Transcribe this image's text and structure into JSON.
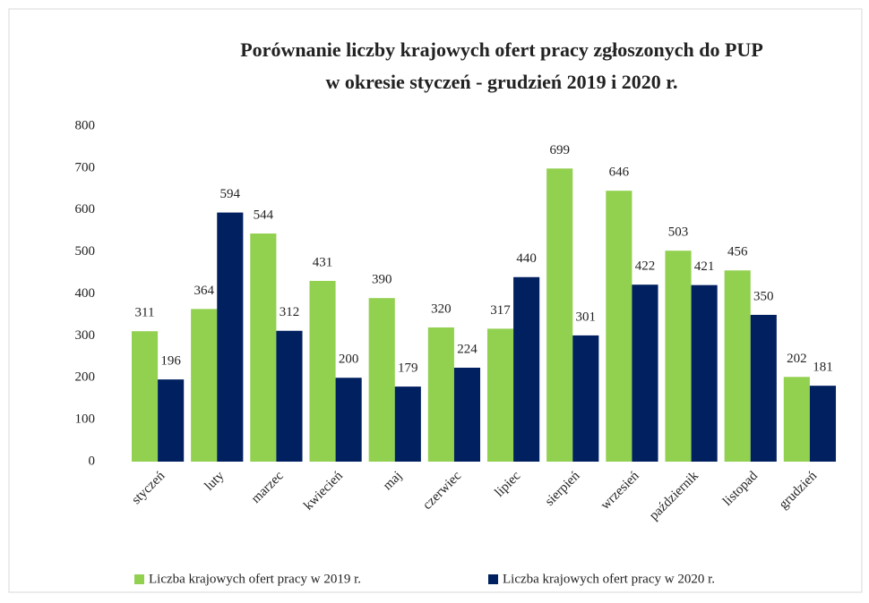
{
  "chart_data": {
    "type": "bar",
    "title": [
      "Porównanie liczby krajowych ofert pracy zgłoszonych do PUP",
      "w okresie styczeń - grudzień 2019 i 2020 r."
    ],
    "categories": [
      "styczeń",
      "luty",
      "marzec",
      "kwiecień",
      "maj",
      "czerwiec",
      "lipiec",
      "sierpień",
      "wrzesień",
      "październik",
      "listopad",
      "grudzień"
    ],
    "series": [
      {
        "name": "Liczba krajowych ofert pracy w 2019 r.",
        "color": "#92d050",
        "values": [
          311,
          364,
          544,
          431,
          390,
          320,
          317,
          699,
          646,
          503,
          456,
          202
        ]
      },
      {
        "name": "Liczba krajowych ofert pracy w 2020 r.",
        "color": "#002060",
        "values": [
          196,
          594,
          312,
          200,
          179,
          224,
          440,
          301,
          422,
          421,
          350,
          181
        ]
      }
    ],
    "ylim": [
      0,
      800
    ],
    "yticks": [
      0,
      100,
      200,
      300,
      400,
      500,
      600,
      700,
      800
    ],
    "grid": false,
    "legend": "bottom"
  }
}
